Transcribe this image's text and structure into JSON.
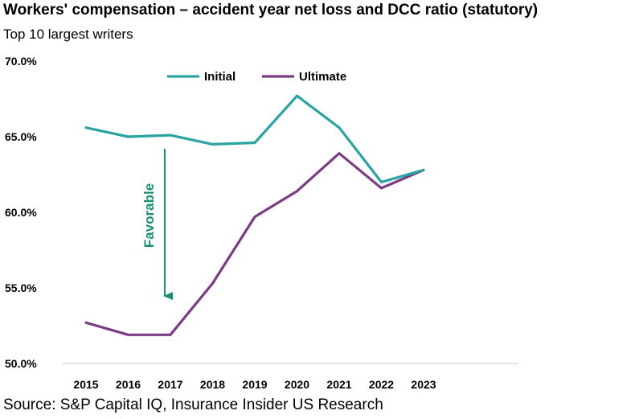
{
  "chart_data": {
    "type": "line",
    "title": "Workers' compensation – accident year net loss and DCC ratio (statutory)",
    "subtitle": "Top 10 largest writers",
    "source": "Source: S&P Capital IQ, Insurance Insider US Research",
    "categories": [
      "2015",
      "2016",
      "2017",
      "2018",
      "2019",
      "2020",
      "2021",
      "2022",
      "2023"
    ],
    "series": [
      {
        "name": "Initial",
        "color": "#2aa3a3",
        "values": [
          65.6,
          65.0,
          65.1,
          64.5,
          64.6,
          67.7,
          65.6,
          62.0,
          62.8
        ]
      },
      {
        "name": "Ultimate",
        "color": "#7b3b85",
        "values": [
          52.7,
          51.9,
          51.9,
          55.3,
          59.7,
          61.4,
          63.9,
          61.6,
          62.8
        ]
      }
    ],
    "y_ticks": [
      "50.0%",
      "55.0%",
      "60.0%",
      "65.0%",
      "70.0%"
    ],
    "ylim": [
      50,
      70
    ],
    "xlabel": "",
    "ylabel": "",
    "legend": "top-center",
    "annotation": {
      "text": "Favorable",
      "color": "#1a9070",
      "from_year": "2017"
    }
  }
}
